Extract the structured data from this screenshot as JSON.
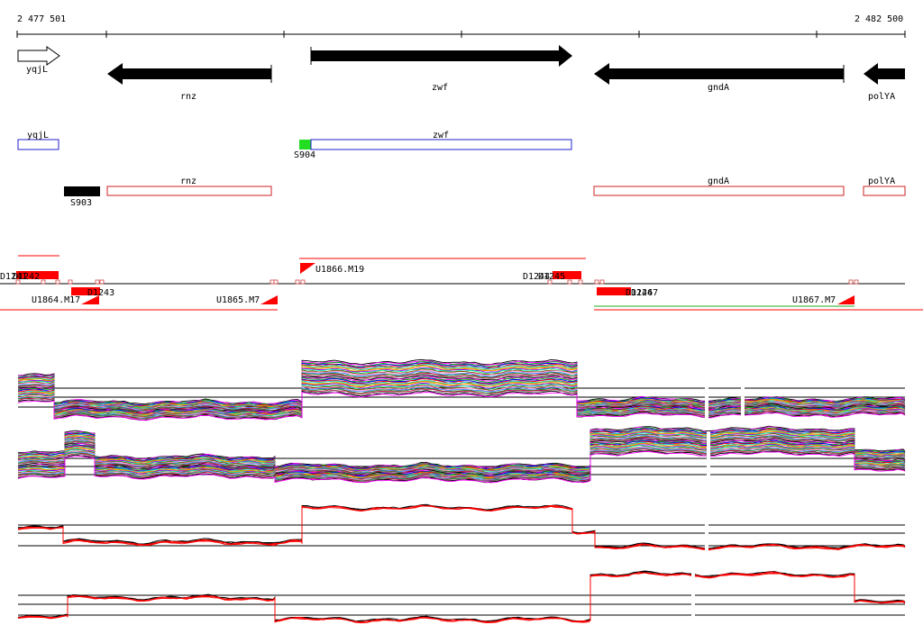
{
  "coordinates": {
    "start_label": "2 477 501",
    "end_label": "2 482 500"
  },
  "genes": [
    {
      "name": "yqjL",
      "strand": "+"
    },
    {
      "name": "rnz",
      "strand": "-"
    },
    {
      "name": "zwf",
      "strand": "+"
    },
    {
      "name": "gndA",
      "strand": "-"
    },
    {
      "name": "polYA",
      "strand": "-"
    }
  ],
  "cds_labels": {
    "forward": [
      "yqjL",
      "zwf"
    ],
    "reverse": [
      "rnz",
      "gndA",
      "polYA"
    ]
  },
  "small_features": [
    "S904",
    "S903"
  ],
  "segment_labels": {
    "upstream": [
      "U1864.M17",
      "U1865.M7",
      "U1866.M19",
      "U1867.M7"
    ],
    "downstream": [
      "D1241",
      "D1242",
      "D1243",
      "D1244",
      "D1245",
      "D1246",
      "D1247"
    ]
  },
  "colors": {
    "gene_arrow": "#000000",
    "cds_forward": "#2222cc",
    "cds_reverse": "#cc2222",
    "feature_green": "#22dd22",
    "segment_red": "#ff0000",
    "mean_line_red": "#ff0000",
    "overlay_green": "#22aa22"
  }
}
